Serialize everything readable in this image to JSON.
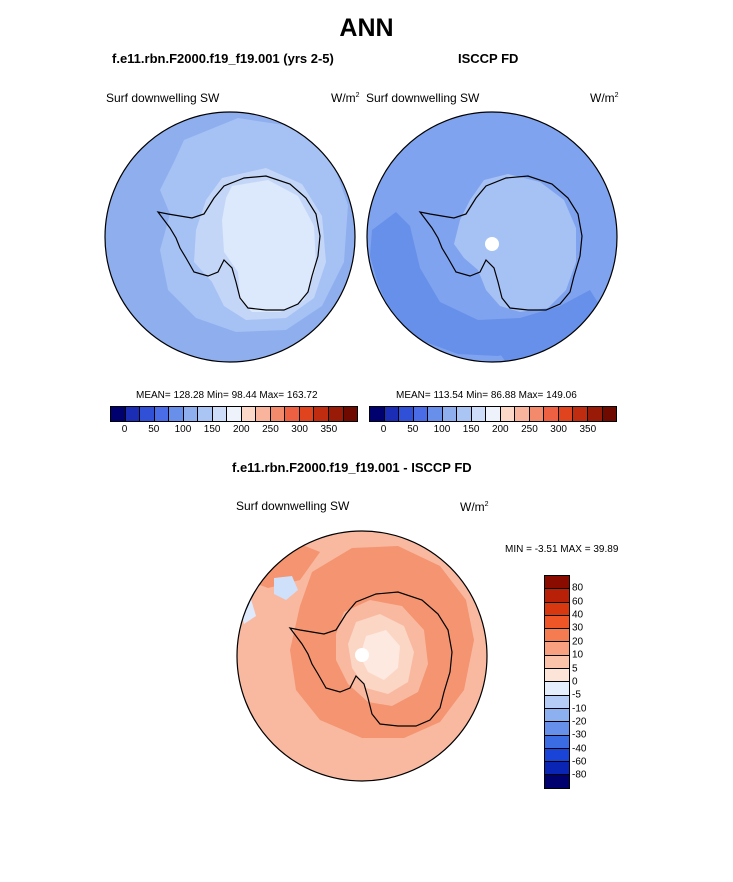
{
  "figure": {
    "title": "ANN"
  },
  "panels": {
    "model": {
      "case": "f.e11.rbn.F2000.f19_f19.001 (yrs 2-5)",
      "variable": "Surf downwelling SW",
      "units_base": "W/m",
      "units_exp": "2",
      "stats": "MEAN= 128.28  Min=  98.44  Max= 163.72"
    },
    "obs": {
      "case": "ISCCP FD",
      "variable": "Surf downwelling SW",
      "units_base": "W/m",
      "units_exp": "2",
      "stats": "MEAN= 113.54  Min=  86.88  Max= 149.06"
    },
    "diff": {
      "case": "f.e11.rbn.F2000.f19_f19.001 - ISCCP FD",
      "variable": "Surf downwelling SW",
      "units_base": "W/m",
      "units_exp": "2",
      "stats": "MIN =  -3.51 MAX =  39.89"
    }
  },
  "colors": {
    "ocean_model": "#8eaeee",
    "ocean_obs": "#7fa3ee",
    "band_light": "#a6c1f4",
    "band_pale": "#c4d6f8",
    "land_model_inner": "#dce8fb",
    "band_dark": "#6690ea",
    "diff_base": "#f8b9a0",
    "diff_mid": "#f49470",
    "diff_light": "#fbd6c4",
    "diff_pale": "#fde9df",
    "coastline": "#000000"
  },
  "chart_data": [
    {
      "type": "heatmap",
      "projection": "south polar stereographic",
      "title": "f.e11.rbn.F2000.f19_f19.001 (yrs 2-5)",
      "variable": "Surf downwelling SW",
      "units": "W/m2",
      "mean": 128.28,
      "min": 98.44,
      "max": 163.72,
      "colorbar": {
        "orientation": "horizontal",
        "tick_labels": [
          "0",
          "50",
          "100",
          "150",
          "200",
          "250",
          "300",
          "350"
        ],
        "colors": [
          "#00006e",
          "#1a2db4",
          "#3050d8",
          "#4a6ce6",
          "#6890ea",
          "#8eaeee",
          "#aac4f4",
          "#cddcf8",
          "#eef3fb",
          "#fbd8c8",
          "#f8b49c",
          "#f48a6c",
          "#ee6042",
          "#e0441e",
          "#c02c10",
          "#9a1a08",
          "#6e0a00"
        ]
      }
    },
    {
      "type": "heatmap",
      "projection": "south polar stereographic",
      "title": "ISCCP FD",
      "variable": "Surf downwelling SW",
      "units": "W/m2",
      "mean": 113.54,
      "min": 86.88,
      "max": 149.06,
      "colorbar": {
        "orientation": "horizontal",
        "tick_labels": [
          "0",
          "50",
          "100",
          "150",
          "200",
          "250",
          "300",
          "350"
        ],
        "colors": [
          "#00006e",
          "#1a2db4",
          "#3050d8",
          "#4a6ce6",
          "#6890ea",
          "#8eaeee",
          "#aac4f4",
          "#cddcf8",
          "#eef3fb",
          "#fbd8c8",
          "#f8b49c",
          "#f48a6c",
          "#ee6042",
          "#e0441e",
          "#c02c10",
          "#9a1a08",
          "#6e0a00"
        ]
      }
    },
    {
      "type": "heatmap",
      "projection": "south polar stereographic",
      "title": "f.e11.rbn.F2000.f19_f19.001 - ISCCP FD",
      "variable": "Surf downwelling SW",
      "units": "W/m2",
      "min": -3.51,
      "max": 39.89,
      "colorbar": {
        "orientation": "vertical",
        "levels": [
          "80",
          "60",
          "40",
          "30",
          "20",
          "10",
          "5",
          "0",
          "-5",
          "-10",
          "-20",
          "-30",
          "-40",
          "-60",
          "-80"
        ],
        "colors": [
          "#8a0c00",
          "#b82008",
          "#d83810",
          "#ee5628",
          "#f47c50",
          "#f8a080",
          "#fbc4aa",
          "#fde4d8",
          "#e4eefc",
          "#b4ccf6",
          "#8cb0f0",
          "#6690ea",
          "#3c6ce4",
          "#1a44d8",
          "#0a24b4",
          "#00006e"
        ]
      }
    }
  ]
}
